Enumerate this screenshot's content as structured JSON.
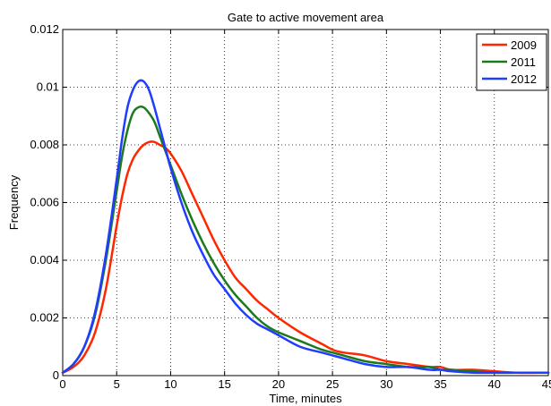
{
  "chart_data": {
    "type": "line",
    "title": "Gate to active movement area",
    "xlabel": "Time, minutes",
    "ylabel": "Frequency",
    "xlim": [
      0,
      45
    ],
    "ylim": [
      0,
      0.012
    ],
    "xticks": [
      0,
      5,
      10,
      15,
      20,
      25,
      30,
      35,
      40,
      45
    ],
    "xtick_labels": [
      "0",
      "5",
      "10",
      "15",
      "20",
      "25",
      "30",
      "35",
      "40",
      "45"
    ],
    "yticks": [
      0,
      0.002,
      0.004,
      0.006,
      0.008,
      0.01,
      0.012
    ],
    "ytick_labels": [
      "0",
      "0.002",
      "0.004",
      "0.006",
      "0.008",
      "0.01",
      "0.012"
    ],
    "grid": true,
    "legend_position": "top-right",
    "series": [
      {
        "name": "2009",
        "color": "#ff2600",
        "x": [
          0,
          1,
          2,
          3,
          4,
          5,
          5.5,
          6,
          6.5,
          7,
          7.5,
          8,
          8.5,
          9,
          9.5,
          10,
          11,
          12,
          13,
          14,
          15,
          16,
          17,
          18,
          19,
          20,
          22,
          24,
          25,
          26,
          28,
          30,
          32,
          34,
          35,
          36,
          38,
          40,
          42,
          45
        ],
        "values": [
          0.0001,
          0.0003,
          0.0007,
          0.0015,
          0.003,
          0.0052,
          0.0062,
          0.007,
          0.0075,
          0.0078,
          0.008,
          0.0081,
          0.0081,
          0.008,
          0.0079,
          0.0077,
          0.0071,
          0.0063,
          0.0055,
          0.0047,
          0.004,
          0.0034,
          0.003,
          0.0026,
          0.0023,
          0.002,
          0.0015,
          0.0011,
          0.0009,
          0.0008,
          0.0007,
          0.0005,
          0.0004,
          0.0003,
          0.0003,
          0.0002,
          0.0002,
          0.00015,
          0.0001,
          0.0001
        ]
      },
      {
        "name": "2011",
        "color": "#1b7a1b",
        "x": [
          0,
          1,
          2,
          3,
          4,
          5,
          5.5,
          6,
          6.5,
          7,
          7.5,
          8,
          8.5,
          9,
          9.5,
          10,
          11,
          12,
          13,
          14,
          15,
          16,
          17,
          18,
          19,
          20,
          22,
          24,
          25,
          26,
          28,
          30,
          32,
          34,
          35,
          36,
          38,
          40,
          42,
          45
        ],
        "values": [
          0.0001,
          0.0004,
          0.001,
          0.0021,
          0.004,
          0.0064,
          0.0076,
          0.0085,
          0.0091,
          0.0093,
          0.0093,
          0.0091,
          0.0088,
          0.0083,
          0.0078,
          0.0073,
          0.0063,
          0.0054,
          0.0046,
          0.0039,
          0.0033,
          0.0028,
          0.0024,
          0.002,
          0.0017,
          0.0015,
          0.0012,
          0.0009,
          0.0008,
          0.0007,
          0.0005,
          0.0004,
          0.0003,
          0.0003,
          0.0002,
          0.0002,
          0.00015,
          0.0001,
          0.0001,
          0.0001
        ]
      },
      {
        "name": "2012",
        "color": "#1f3cff",
        "x": [
          0,
          1,
          2,
          3,
          4,
          5,
          5.5,
          6,
          6.5,
          7,
          7.5,
          8,
          8.5,
          9,
          9.5,
          10,
          11,
          12,
          13,
          14,
          15,
          16,
          17,
          18,
          19,
          20,
          22,
          24,
          25,
          26,
          28,
          30,
          32,
          34,
          35,
          36,
          38,
          40,
          42,
          45
        ],
        "values": [
          0.0001,
          0.0004,
          0.001,
          0.0022,
          0.0042,
          0.0068,
          0.0082,
          0.0093,
          0.0099,
          0.0102,
          0.0102,
          0.0099,
          0.0093,
          0.0086,
          0.0079,
          0.0072,
          0.006,
          0.005,
          0.0042,
          0.0035,
          0.003,
          0.0025,
          0.0021,
          0.0018,
          0.0016,
          0.0014,
          0.001,
          0.0008,
          0.0007,
          0.0006,
          0.0004,
          0.0003,
          0.0003,
          0.0002,
          0.0002,
          0.00015,
          0.0001,
          0.0001,
          0.0001,
          0.0001
        ]
      }
    ]
  }
}
